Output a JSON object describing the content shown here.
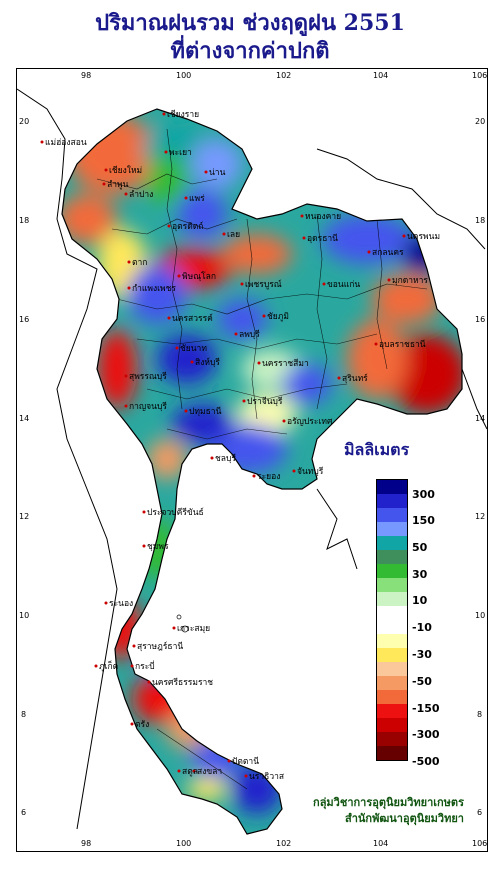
{
  "title": {
    "line1": "ปริมาณฝนรวม ช่วงฤดูฝน 2551",
    "line2": "ที่ต่างจากค่าปกติ"
  },
  "axes": {
    "longitude_ticks": [
      "98",
      "100",
      "102",
      "104",
      "106"
    ],
    "latitude_ticks": [
      "20",
      "18",
      "16",
      "14",
      "12",
      "10",
      "8",
      "6"
    ]
  },
  "legend": {
    "unit_title": "มิลลิเมตร",
    "colors": [
      "#00008b",
      "#2222cc",
      "#4455ee",
      "#7799ff",
      "#11a5a5",
      "#3f8f5c",
      "#33bb33",
      "#88e07a",
      "#ccf3c3",
      "#ffffff",
      "#ffffff",
      "#ffffb0",
      "#ffe85a",
      "#fbc89b",
      "#f59a62",
      "#f26a3a",
      "#ee1111",
      "#cc0000",
      "#990000",
      "#660000"
    ],
    "labels": [
      "300",
      "150",
      "50",
      "30",
      "10",
      "-10",
      "-30",
      "-50",
      "-150",
      "-300",
      "-500"
    ]
  },
  "credits": {
    "line1": "กลุ่มวิชาการอุตุนิยมวิทยาเกษตร",
    "line2": "สำนักพัฒนาอุตุนิยมวิทยา"
  },
  "places": [
    "เชียงราย",
    "แม่ฮ่องสอน",
    "เชียงใหม่",
    "พะเยา",
    "น่าน",
    "ลำพูน",
    "ลำปาง",
    "แพร่",
    "อุตรดิตถ์",
    "ตาก",
    "เลย",
    "หนองคาย",
    "อุดรธานี",
    "นครพนม",
    "สกลนคร",
    "มุกดาหาร",
    "กำแพงเพชร",
    "พิษณุโลก",
    "เพชรบูรณ์",
    "ขอนแก่น",
    "นครสวรรค์",
    "อุบลราชธานี",
    "ชัยภูมิ",
    "นครราชสีมา",
    "สุรินทร์",
    "ชัยนาท",
    "สิงห์บุรี",
    "สุพรรณบุรี",
    "ลพบุรี",
    "กาญจนบุรี",
    "ปทุมธานี",
    "ปราจีนบุรี",
    "อรัญประเทศ",
    "ชลบุรี",
    "ระยอง",
    "จันทบุรี",
    "ประจวบคีรีขันธ์",
    "ชุมพร",
    "ระนอง",
    "สุราษฎร์ธานี",
    "เกาะสมุย",
    "นครศรีธรรมราช",
    "ภูเก็ต",
    "กระบี่",
    "ตรัง",
    "สงขลา",
    "ปัตตานี",
    "สตูล",
    "นราธิวาส"
  ]
}
